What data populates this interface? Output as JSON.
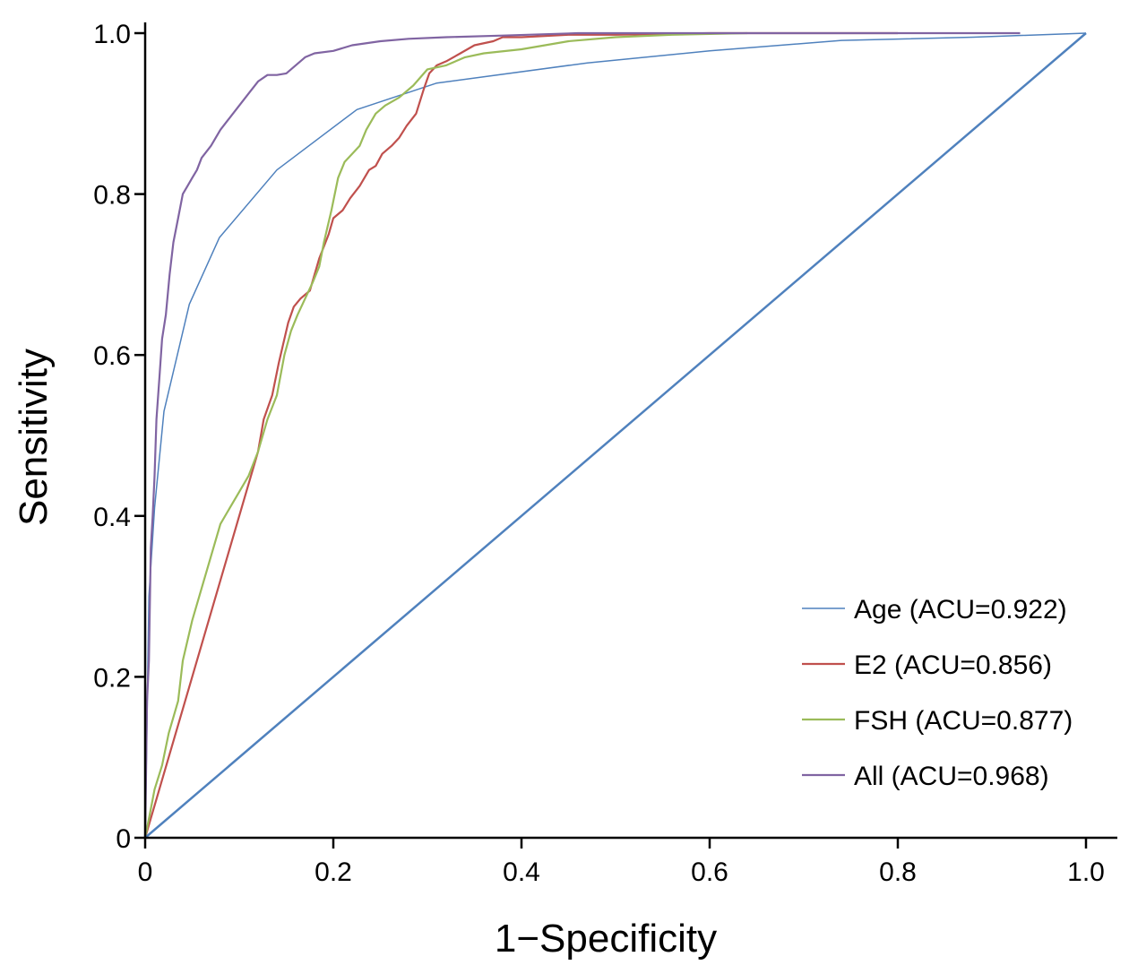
{
  "chart_data": {
    "type": "line",
    "title": "",
    "xlabel": "1−Specificity",
    "ylabel": "Sensitivity",
    "xlim": [
      0,
      1
    ],
    "ylim": [
      0,
      1
    ],
    "x_ticks": [
      0,
      0.2,
      0.4,
      0.6,
      0.8,
      1.0
    ],
    "x_tick_labels": [
      "0",
      "0.2",
      "0.4",
      "0.6",
      "0.8",
      "1.0"
    ],
    "y_ticks": [
      0,
      0.2,
      0.4,
      0.6,
      0.8,
      1.0
    ],
    "y_tick_labels": [
      "0",
      "0.2",
      "0.4",
      "0.6",
      "0.8",
      "1.0"
    ],
    "grid": false,
    "legend_position": "bottom-right",
    "series": [
      {
        "name": "Age (ACU=0.922)",
        "color": "#4f81bd",
        "x": [
          0,
          0.004,
          0.01,
          0.02,
          0.047,
          0.079,
          0.14,
          0.225,
          0.31,
          0.47,
          0.6,
          0.74,
          0.88,
          1.0
        ],
        "y": [
          0,
          0.3,
          0.41,
          0.53,
          0.663,
          0.746,
          0.83,
          0.905,
          0.938,
          0.963,
          0.978,
          0.991,
          0.995,
          1.0
        ]
      },
      {
        "name": "E2 (ACU=0.856)",
        "color": "#c0504d",
        "x": [
          0,
          0.12,
          0.126,
          0.135,
          0.142,
          0.148,
          0.152,
          0.158,
          0.165,
          0.175,
          0.185,
          0.195,
          0.2,
          0.21,
          0.218,
          0.228,
          0.238,
          0.245,
          0.252,
          0.262,
          0.27,
          0.278,
          0.288,
          0.296,
          0.302,
          0.31,
          0.32,
          0.335,
          0.35,
          0.37,
          0.38,
          0.4,
          0.45,
          0.5,
          0.6,
          0.7,
          0.8
        ],
        "y": [
          0,
          0.48,
          0.52,
          0.55,
          0.59,
          0.62,
          0.64,
          0.66,
          0.67,
          0.68,
          0.72,
          0.75,
          0.77,
          0.78,
          0.795,
          0.81,
          0.83,
          0.835,
          0.85,
          0.86,
          0.87,
          0.885,
          0.9,
          0.93,
          0.95,
          0.96,
          0.965,
          0.975,
          0.985,
          0.99,
          0.995,
          0.995,
          0.998,
          0.998,
          1.0,
          1.0,
          1.0
        ]
      },
      {
        "name": "FSH (ACU=0.877)",
        "color": "#9bbb59",
        "x": [
          0,
          0.005,
          0.01,
          0.018,
          0.025,
          0.035,
          0.04,
          0.05,
          0.06,
          0.07,
          0.08,
          0.09,
          0.1,
          0.11,
          0.12,
          0.13,
          0.14,
          0.148,
          0.155,
          0.162,
          0.17,
          0.178,
          0.185,
          0.19,
          0.198,
          0.205,
          0.212,
          0.22,
          0.228,
          0.235,
          0.245,
          0.255,
          0.27,
          0.285,
          0.3,
          0.32,
          0.34,
          0.36,
          0.4,
          0.45,
          0.5,
          0.56,
          0.64
        ],
        "y": [
          0,
          0.03,
          0.06,
          0.09,
          0.13,
          0.17,
          0.22,
          0.27,
          0.31,
          0.35,
          0.39,
          0.41,
          0.43,
          0.45,
          0.48,
          0.52,
          0.55,
          0.6,
          0.63,
          0.65,
          0.67,
          0.69,
          0.71,
          0.74,
          0.78,
          0.82,
          0.84,
          0.85,
          0.86,
          0.88,
          0.9,
          0.91,
          0.92,
          0.935,
          0.955,
          0.96,
          0.97,
          0.975,
          0.98,
          0.99,
          0.995,
          0.998,
          1.0
        ]
      },
      {
        "name": "All (ACU=0.968)",
        "color": "#8064a2",
        "x": [
          0,
          0.002,
          0.004,
          0.006,
          0.008,
          0.01,
          0.012,
          0.015,
          0.018,
          0.022,
          0.026,
          0.03,
          0.035,
          0.04,
          0.045,
          0.05,
          0.055,
          0.06,
          0.07,
          0.08,
          0.09,
          0.1,
          0.11,
          0.12,
          0.13,
          0.14,
          0.15,
          0.16,
          0.17,
          0.18,
          0.2,
          0.22,
          0.25,
          0.28,
          0.32,
          0.38,
          0.46,
          0.6,
          0.75,
          0.93
        ],
        "y": [
          0,
          0.17,
          0.22,
          0.36,
          0.4,
          0.45,
          0.52,
          0.57,
          0.62,
          0.65,
          0.7,
          0.74,
          0.77,
          0.8,
          0.81,
          0.82,
          0.83,
          0.845,
          0.86,
          0.88,
          0.895,
          0.91,
          0.925,
          0.94,
          0.948,
          0.948,
          0.95,
          0.96,
          0.97,
          0.975,
          0.978,
          0.985,
          0.99,
          0.993,
          0.995,
          0.997,
          1.0,
          1.0,
          1.0,
          1.0
        ]
      },
      {
        "name": "",
        "color": "#4f81bd",
        "x": [
          0,
          1
        ],
        "y": [
          0,
          1
        ]
      }
    ]
  }
}
